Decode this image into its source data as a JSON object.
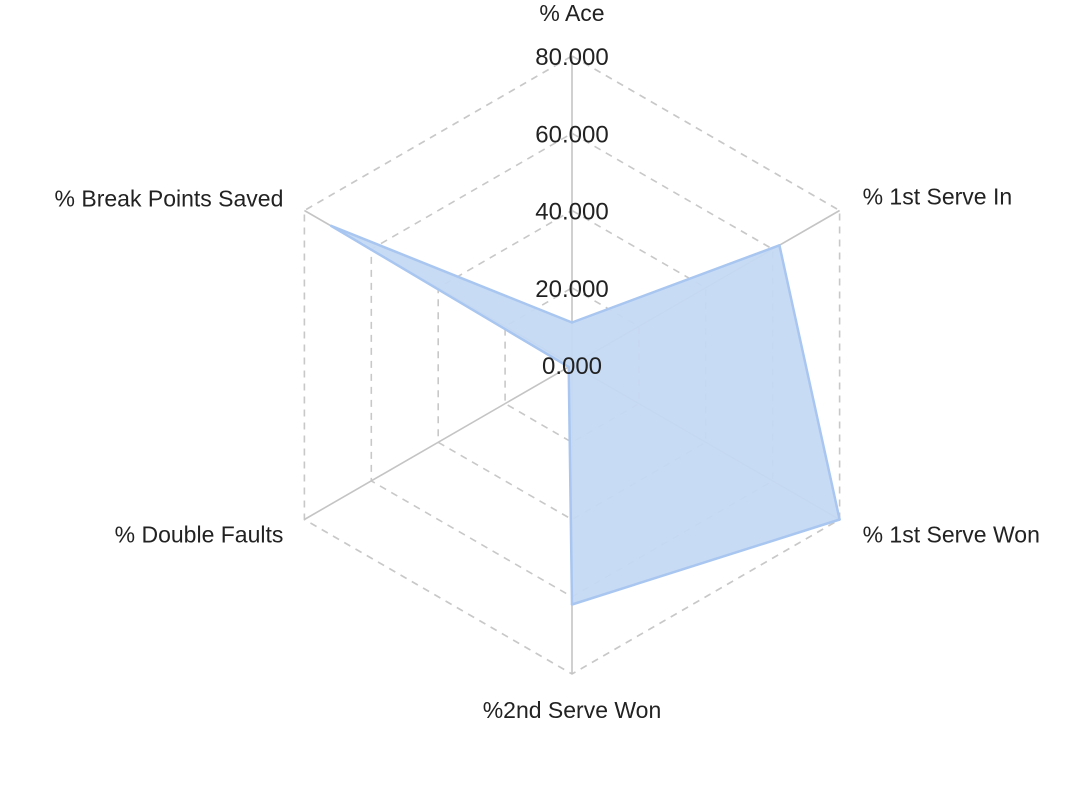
{
  "chart_data": {
    "type": "radar",
    "axes": [
      "% Ace",
      "% 1st Serve In",
      "% 1st Serve Won",
      "%2nd Serve Won",
      "% Double Faults",
      "% Break Points Saved"
    ],
    "rlim": [
      0,
      80
    ],
    "ticks": [
      "0.000",
      "20.000",
      "40.000",
      "60.000",
      "80.000"
    ],
    "tick_values": [
      0,
      20,
      40,
      60,
      80
    ],
    "grid": true,
    "series": [
      {
        "values": [
          11,
          62,
          80,
          62,
          1,
          72
        ],
        "fill": "#c5d9f4",
        "stroke": "#a8c6f0"
      }
    ],
    "colors": {
      "grid": "#c8c8c8",
      "spoke": "#c4c4c4",
      "text": "#222222"
    }
  }
}
